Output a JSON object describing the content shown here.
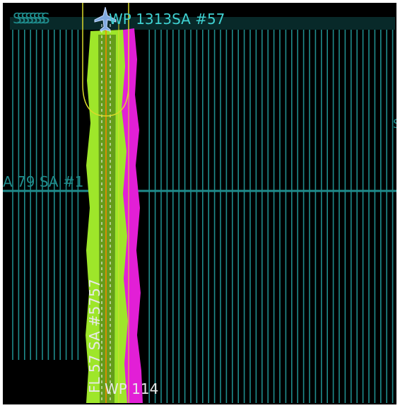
{
  "map": {
    "labels": {
      "top_left_stacked": "SSSSSSSS",
      "top_waypoint": "WP 1313SA #57",
      "left_track": "A 79 SA #1",
      "right_edge": "S",
      "bottom_waypoint": "WP 114",
      "vertical_track": "FL 57 SA #5757"
    },
    "icons": {
      "aircraft": "airplane-icon"
    },
    "colors": {
      "background": "#000000",
      "grid_lines": "#1f8c8c",
      "label_cyan": "#3fd1d1",
      "swath_green": "#9ee62a",
      "swath_magenta": "#e21fd6",
      "yellow_boundary": "#d9d92a",
      "aircraft": "#7fa9e0"
    }
  }
}
